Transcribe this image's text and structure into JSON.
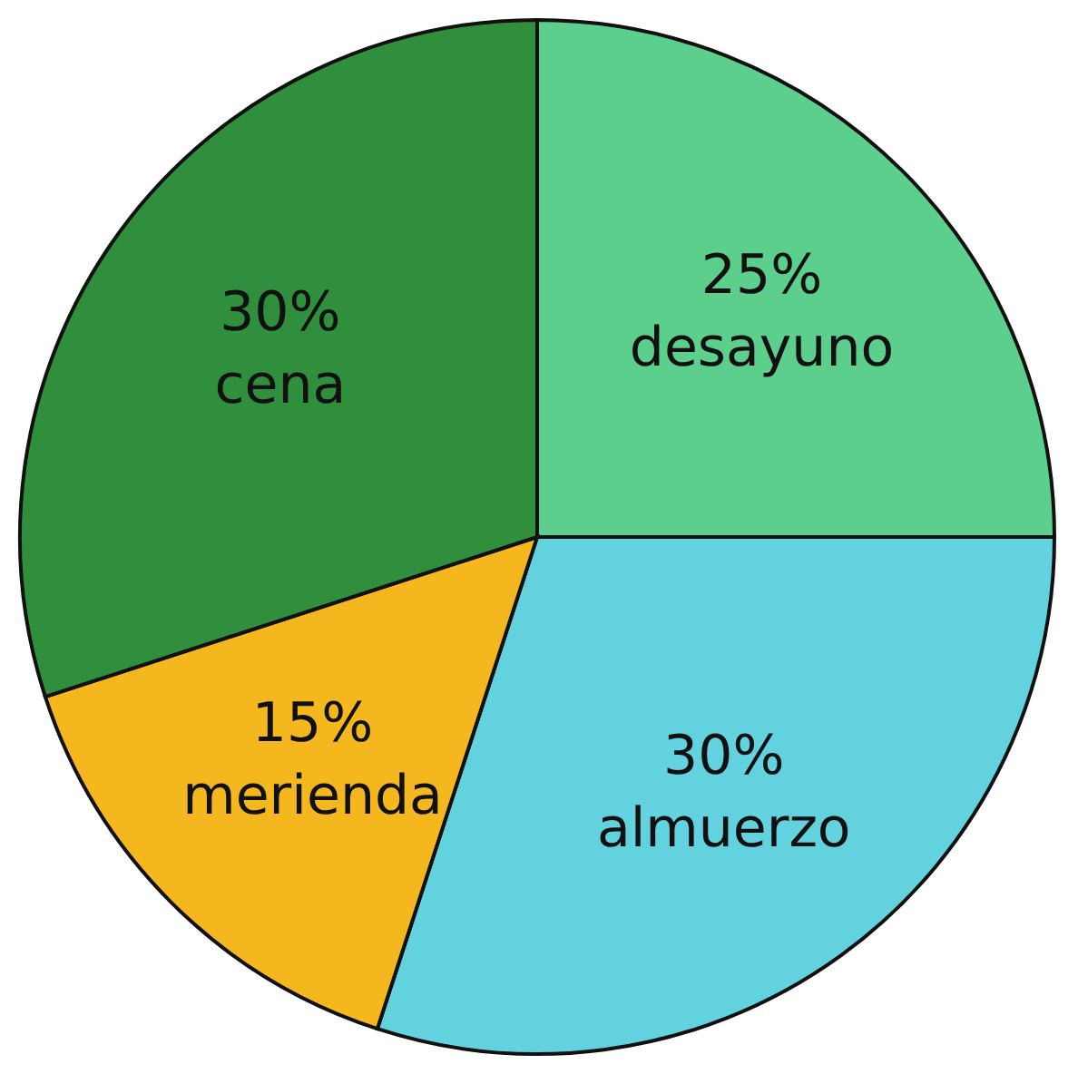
{
  "chart_data": {
    "type": "pie",
    "categories": [
      "desayuno",
      "almuerzo",
      "merienda",
      "cena"
    ],
    "values": [
      25,
      30,
      15,
      30
    ],
    "colors": [
      "#5ccf8c",
      "#62d2de",
      "#f4b71e",
      "#2f8f3c"
    ],
    "value_labels": [
      "25%",
      "30%",
      "15%",
      "30%"
    ]
  }
}
